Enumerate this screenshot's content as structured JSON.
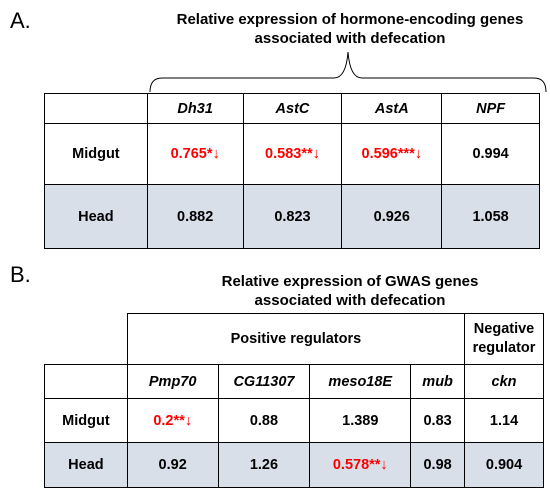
{
  "panel_a": {
    "label": "A.",
    "caption_line1": "Relative expression of hormone-encoding genes",
    "caption_line2": "associated with defecation",
    "genes": [
      "Dh31",
      "AstC",
      "AstA",
      "NPF"
    ],
    "rows": [
      {
        "label": "Midgut",
        "values": [
          {
            "text": "0.765*↓",
            "sig": true
          },
          {
            "text": "0.583**↓",
            "sig": true
          },
          {
            "text": "0.596***↓",
            "sig": true
          },
          {
            "text": "0.994",
            "sig": false
          }
        ]
      },
      {
        "label": "Head",
        "values": [
          {
            "text": "0.882",
            "sig": false
          },
          {
            "text": "0.823",
            "sig": false
          },
          {
            "text": "0.926",
            "sig": false
          },
          {
            "text": "1.058",
            "sig": false
          }
        ]
      }
    ]
  },
  "panel_b": {
    "label": "B.",
    "caption_line1": "Relative expression of GWAS genes",
    "caption_line2": "associated with defecation",
    "positive_label": "Positive regulators",
    "negative_label_line1": "Negative",
    "negative_label_line2": "regulator",
    "genes": [
      "Pmp70",
      "CG11307",
      "meso18E",
      "mub",
      "ckn"
    ],
    "rows": [
      {
        "label": "Midgut",
        "values": [
          {
            "text": "0.2**↓",
            "sig": true
          },
          {
            "text": "0.88",
            "sig": false
          },
          {
            "text": "1.389",
            "sig": false
          },
          {
            "text": "0.83",
            "sig": false
          },
          {
            "text": "1.14",
            "sig": false
          }
        ]
      },
      {
        "label": "Head",
        "values": [
          {
            "text": "0.92",
            "sig": false
          },
          {
            "text": "1.26",
            "sig": false
          },
          {
            "text": "0.578**↓",
            "sig": true
          },
          {
            "text": "0.98",
            "sig": false
          },
          {
            "text": "0.904",
            "sig": false
          }
        ]
      }
    ]
  },
  "colors": {
    "significant": "#ff0000",
    "shade": "#d9dfe8"
  }
}
